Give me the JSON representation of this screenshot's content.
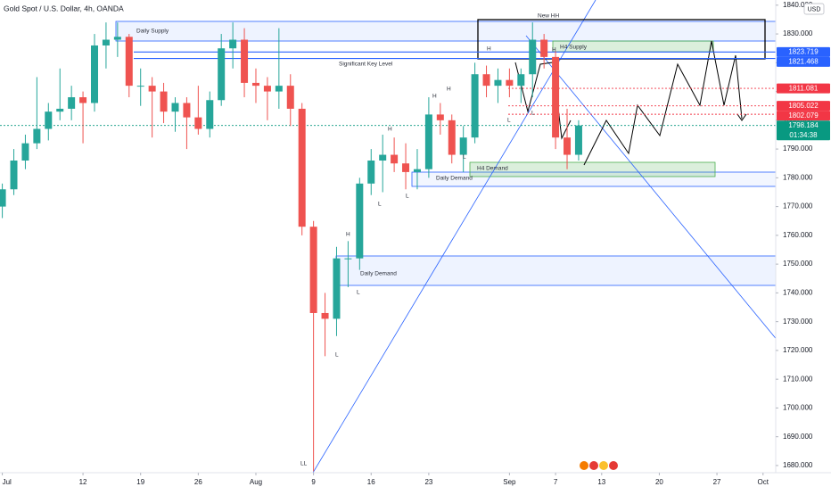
{
  "chart_data": {
    "type": "candlestick",
    "title": "Gold Spot / U.S. Dollar, 4h, OANDA",
    "currency": "USD",
    "countdown": "01:34:38",
    "colors": {
      "up": "#26a69a",
      "down": "#ef5350"
    },
    "grid": false,
    "x": [
      0,
      1,
      2,
      3,
      4,
      5,
      6,
      7,
      8,
      9,
      10,
      11,
      12,
      13,
      14,
      15,
      16,
      17,
      18,
      19,
      20,
      21,
      22,
      23,
      24,
      25,
      26,
      27,
      28,
      29,
      30,
      31,
      32,
      33,
      34,
      35,
      36,
      37,
      38,
      39,
      40,
      41,
      42,
      43,
      44,
      45,
      46,
      47,
      48,
      49,
      50
    ],
    "open": [
      1770,
      1776,
      1786,
      1792,
      1797,
      1803,
      1804,
      1808,
      1806,
      1826,
      1828,
      1829,
      1812,
      1812,
      1810,
      1803,
      1806,
      1801,
      1797,
      1807,
      1825,
      1828,
      1813,
      1812,
      1810,
      1812,
      1804,
      1763,
      1733,
      1731,
      1752,
      1752,
      1778,
      1786,
      1788,
      1785,
      1782,
      1783,
      1802,
      1800,
      1788,
      1794,
      1816,
      1812,
      1814,
      1812,
      1816,
      1828,
      1822,
      1794,
      1788
    ],
    "high": [
      1778,
      1790,
      1795,
      1815,
      1806,
      1818,
      1812,
      1810,
      1830,
      1834,
      1834,
      1830,
      1818,
      1815,
      1813,
      1808,
      1808,
      1812,
      1810,
      1830,
      1834,
      1832,
      1818,
      1815,
      1832,
      1816,
      1806,
      1765,
      1740,
      1756,
      1758,
      1780,
      1790,
      1795,
      1794,
      1792,
      1790,
      1808,
      1806,
      1802,
      1798,
      1820,
      1819,
      1818,
      1818,
      1818,
      1834,
      1830,
      1824,
      1804,
      1800
    ],
    "low": [
      1766,
      1774,
      1783,
      1790,
      1793,
      1800,
      1800,
      1792,
      1803,
      1818,
      1822,
      1808,
      1805,
      1794,
      1799,
      1796,
      1790,
      1795,
      1794,
      1805,
      1818,
      1808,
      1806,
      1800,
      1804,
      1798,
      1760,
      1678,
      1718,
      1725,
      1742,
      1748,
      1774,
      1775,
      1782,
      1776,
      1776,
      1780,
      1795,
      1785,
      1782,
      1792,
      1808,
      1806,
      1808,
      1806,
      1808,
      1818,
      1790,
      1783,
      1786
    ],
    "close": [
      1776,
      1786,
      1792,
      1797,
      1803,
      1804,
      1808,
      1806,
      1826,
      1828,
      1829,
      1812,
      1812,
      1810,
      1803,
      1806,
      1801,
      1797,
      1807,
      1825,
      1828,
      1813,
      1812,
      1810,
      1812,
      1804,
      1763,
      1733,
      1731,
      1752,
      1752,
      1778,
      1786,
      1788,
      1785,
      1782,
      1783,
      1802,
      1800,
      1788,
      1794,
      1816,
      1812,
      1814,
      1812,
      1816,
      1828,
      1822,
      1794,
      1788,
      1798.184
    ],
    "xlim": [
      -0.2,
      67.1
    ],
    "xticks": [
      {
        "value": 0,
        "label": "Jul"
      },
      {
        "value": 7,
        "label": "12"
      },
      {
        "value": 12,
        "label": "19"
      },
      {
        "value": 17,
        "label": "26"
      },
      {
        "value": 22,
        "label": "Aug"
      },
      {
        "value": 27,
        "label": "9"
      },
      {
        "value": 32,
        "label": "16"
      },
      {
        "value": 37,
        "label": "23"
      },
      {
        "value": 44,
        "label": "Sep"
      },
      {
        "value": 48,
        "label": "7"
      },
      {
        "value": 52,
        "label": "13"
      },
      {
        "value": 57,
        "label": "20"
      },
      {
        "value": 62,
        "label": "27"
      },
      {
        "value": 66,
        "label": "Oct"
      }
    ],
    "ylim": [
      1677.5,
      1841.8
    ],
    "yticks": [
      {
        "value": 1680,
        "label": "1680.000"
      },
      {
        "value": 1690,
        "label": "1690.000"
      },
      {
        "value": 1700,
        "label": "1700.000"
      },
      {
        "value": 1710,
        "label": "1710.000"
      },
      {
        "value": 1720,
        "label": "1720.000"
      },
      {
        "value": 1730,
        "label": "1730.000"
      },
      {
        "value": 1740,
        "label": "1740.000"
      },
      {
        "value": 1750,
        "label": "1750.000"
      },
      {
        "value": 1760,
        "label": "1760.000"
      },
      {
        "value": 1770,
        "label": "1770.000"
      },
      {
        "value": 1780,
        "label": "1780.000"
      },
      {
        "value": 1790,
        "label": "1790.000"
      },
      {
        "value": 1800,
        "label": "1800.000"
      },
      {
        "value": 1810,
        "label": "1810.000"
      },
      {
        "value": 1820,
        "label": "1820.000"
      },
      {
        "value": 1830,
        "label": "1830.000"
      },
      {
        "value": 1840,
        "label": "1840.000"
      }
    ],
    "levels": [
      {
        "value": 1823.719,
        "color": "#2962ff",
        "line": "solid"
      },
      {
        "value": 1821.468,
        "color": "#2962ff",
        "line": "solid"
      },
      {
        "value": 1811.081,
        "color": "#f23645",
        "line": "dotted"
      },
      {
        "value": 1805.022,
        "color": "#f23645",
        "line": "dotted"
      },
      {
        "value": 1802.079,
        "color": "#f23645",
        "line": "dotted"
      },
      {
        "value": 1798.184,
        "color": "#089981",
        "line": "dotted"
      }
    ],
    "annotations": [
      "Daily Supply",
      "Significant Key Level",
      "New HH",
      "H4 Supply",
      "H4 Demand",
      "Daily Demand",
      "Daily Demand",
      "H",
      "H",
      "H",
      "H",
      "H",
      "H",
      "L",
      "L",
      "L",
      "L",
      "L",
      "L",
      "L",
      "LL"
    ]
  }
}
